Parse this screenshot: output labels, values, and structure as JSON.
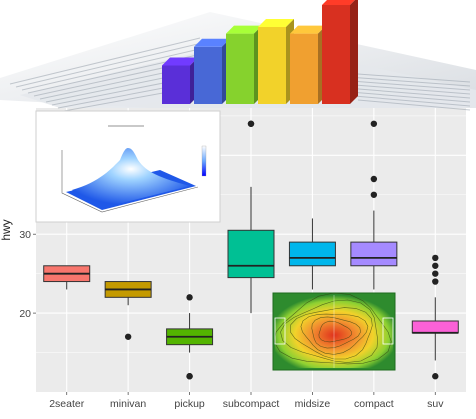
{
  "chart_data": [
    {
      "type": "box",
      "ylabel": "hwy",
      "xlabel": "",
      "ylim": [
        10,
        46
      ],
      "y_ticks": [
        "20",
        "30"
      ],
      "background": "#ebebeb",
      "grid": true,
      "categories": [
        "2seater",
        "minivan",
        "pickup",
        "subcompact",
        "midsize",
        "compact",
        "suv"
      ],
      "boxes": [
        {
          "category": "2seater",
          "min": 23,
          "q1": 24,
          "median": 25,
          "q3": 26,
          "max": 26,
          "outliers": [],
          "color": "#f8766d"
        },
        {
          "category": "minivan",
          "min": 21,
          "q1": 22,
          "median": 23,
          "q3": 24,
          "max": 24,
          "outliers": [
            17
          ],
          "color": "#c49a00"
        },
        {
          "category": "pickup",
          "min": 15,
          "q1": 16,
          "median": 17,
          "q3": 18,
          "max": 20,
          "outliers": [
            12,
            12,
            22
          ],
          "color": "#53b400"
        },
        {
          "category": "subcompact",
          "min": 20,
          "q1": 24.5,
          "median": 26,
          "q3": 30.5,
          "max": 36,
          "outliers": [
            44,
            44
          ],
          "color": "#00c094"
        },
        {
          "category": "midsize",
          "min": 23,
          "q1": 26,
          "median": 27,
          "q3": 29,
          "max": 32,
          "outliers": [],
          "color": "#00b6eb"
        },
        {
          "category": "compact",
          "min": 23,
          "q1": 26,
          "median": 27,
          "q3": 29,
          "max": 33,
          "outliers": [
            35,
            37,
            44
          ],
          "color": "#a58aff"
        },
        {
          "category": "suv",
          "min": 14,
          "q1": 17.5,
          "median": 17.5,
          "q3": 19,
          "max": 22,
          "outliers": [
            12,
            24,
            25,
            26,
            27
          ],
          "color": "#fb61d7"
        }
      ]
    },
    {
      "type": "bar",
      "style": "3d",
      "values": [
        3.5,
        5.2,
        6.4,
        7.0,
        6.4,
        9.0
      ],
      "colors": [
        "#5a2fd8",
        "#4868d6",
        "#86d22d",
        "#f2d22a",
        "#f0a030",
        "#d83020"
      ]
    },
    {
      "type": "surface",
      "title": "",
      "colorscale": [
        "#0000ff",
        "#87cefa",
        "#ffffff"
      ]
    },
    {
      "type": "heatmap",
      "style": "contour",
      "colorscale": [
        "#1d7a1d",
        "#8ed132",
        "#f2d22a",
        "#f07a20",
        "#d62a1a"
      ]
    }
  ]
}
